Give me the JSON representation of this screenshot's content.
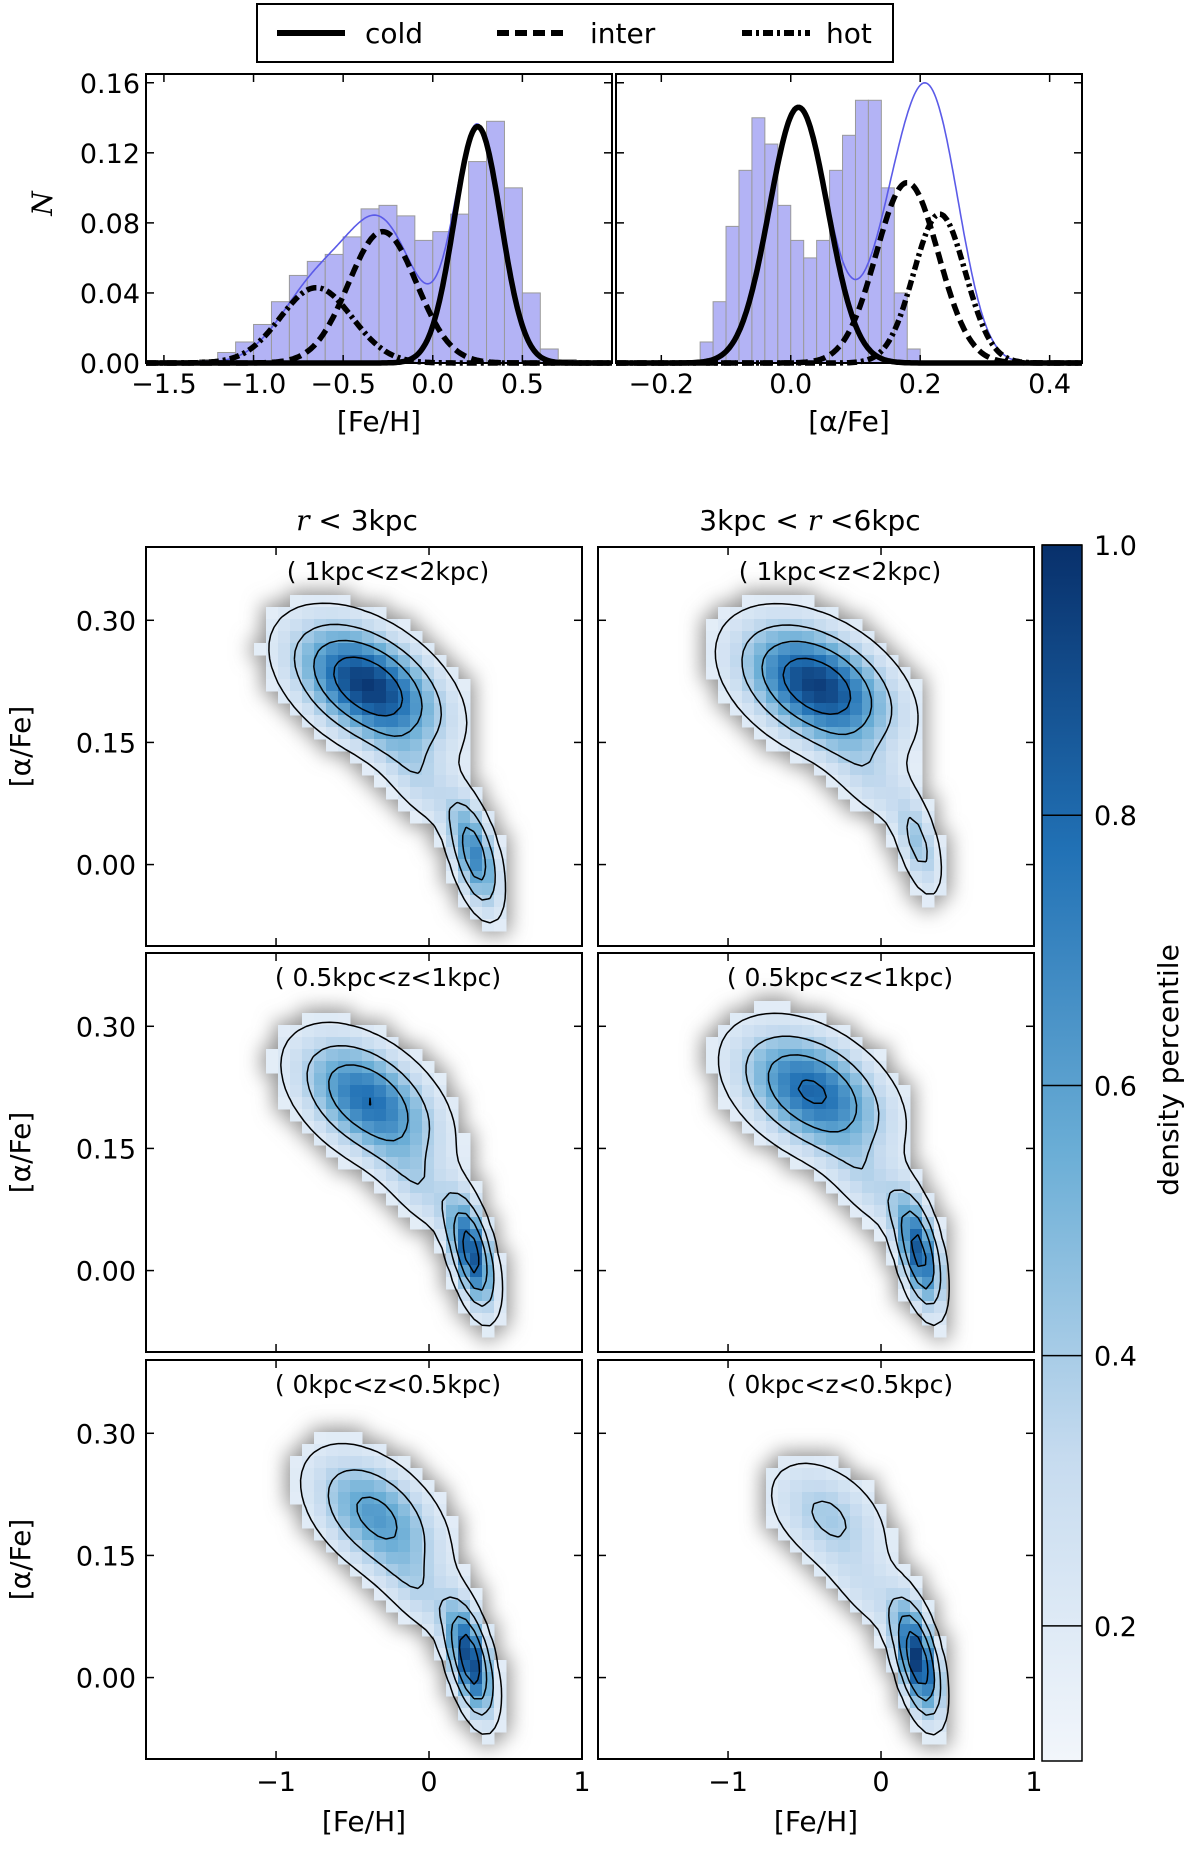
{
  "colors": {
    "hist_fill": "#b3b3f5",
    "hist_edge": "#9a9a9a",
    "total_fit": "#5b5be8",
    "curve": "#000000",
    "cmap_low": "#f2f6fb",
    "cmap_high": "#08306b"
  },
  "legend": {
    "items": [
      {
        "label": "cold",
        "style": "solid"
      },
      {
        "label": "inter",
        "style": "dashed"
      },
      {
        "label": "hot",
        "style": "dotted"
      }
    ]
  },
  "chart_data": [
    {
      "id": "feh-hist",
      "type": "bar",
      "title": "",
      "xlabel": "[Fe/H]",
      "ylabel": "N",
      "xlim": [
        -1.6,
        1.0
      ],
      "ylim": [
        0,
        0.165
      ],
      "xticks": [
        -1.5,
        -1.0,
        -0.5,
        0.0,
        0.5
      ],
      "xtick_labels": [
        "−1.5",
        "−1.0",
        "−0.5",
        "0.0",
        "0.5"
      ],
      "yticks": [
        0,
        0.04,
        0.08,
        0.12,
        0.16
      ],
      "ytick_labels": [
        "0.00",
        "0.04",
        "0.08",
        "0.12",
        "0.16"
      ],
      "bins": {
        "start": -1.3,
        "width": 0.1,
        "counts": [
          0.002,
          0.006,
          0.012,
          0.022,
          0.035,
          0.05,
          0.058,
          0.062,
          0.072,
          0.088,
          0.09,
          0.084,
          0.07,
          0.075,
          0.085,
          0.115,
          0.138,
          0.1,
          0.04,
          0.008,
          0.002
        ]
      },
      "components": [
        {
          "name": "cold",
          "amp": 0.135,
          "mu": 0.25,
          "sigma": 0.13
        },
        {
          "name": "inter",
          "amp": 0.075,
          "mu": -0.28,
          "sigma": 0.19
        },
        {
          "name": "hot",
          "amp": 0.043,
          "mu": -0.65,
          "sigma": 0.2
        }
      ]
    },
    {
      "id": "afe-hist",
      "type": "bar",
      "title": "",
      "xlabel": "[α/Fe]",
      "ylabel": "",
      "xlim": [
        -0.27,
        0.45
      ],
      "ylim": [
        0,
        0.165
      ],
      "xticks": [
        -0.2,
        0.0,
        0.2,
        0.4
      ],
      "xtick_labels": [
        "−0.2",
        "0.0",
        "0.2",
        "0.4"
      ],
      "yticks": [
        0,
        0.04,
        0.08,
        0.12,
        0.16
      ],
      "ytick_labels": [
        "",
        "",
        "",
        "",
        ""
      ],
      "bins": {
        "start": -0.14,
        "width": 0.02,
        "counts": [
          0.012,
          0.035,
          0.078,
          0.11,
          0.14,
          0.125,
          0.09,
          0.07,
          0.06,
          0.07,
          0.11,
          0.13,
          0.15,
          0.15,
          0.1,
          0.04,
          0.008
        ]
      },
      "components": [
        {
          "name": "cold",
          "amp": 0.146,
          "mu": 0.012,
          "sigma": 0.045
        },
        {
          "name": "inter",
          "amp": 0.103,
          "mu": 0.18,
          "sigma": 0.048
        },
        {
          "name": "hot",
          "amp": 0.085,
          "mu": 0.23,
          "sigma": 0.04
        }
      ]
    },
    {
      "id": "density-grid",
      "type": "heatmap",
      "xlabel": "[Fe/H]",
      "ylabel": "[α/Fe]",
      "xlim": [
        -1.85,
        1.0
      ],
      "ylim": [
        -0.1,
        0.39
      ],
      "xticks": [
        -1,
        0,
        1
      ],
      "xtick_labels": [
        "−1",
        "0",
        "1"
      ],
      "yticks": [
        0.0,
        0.15,
        0.3
      ],
      "ytick_labels": [
        "0.00",
        "0.15",
        "0.30"
      ],
      "columns": [
        {
          "prefix": "r",
          "op": " < ",
          "suffix": "3kpc",
          "full": "r < 3kpc"
        },
        {
          "prefix": "3kpc < ",
          "op": "r",
          "suffix": " <6kpc",
          "full": "3kpc < r <6kpc"
        }
      ],
      "rows": [
        "( 1kpc<z<2kpc)",
        "( 0.5kpc<z<1kpc)",
        "( 0kpc<z<0.5kpc)"
      ],
      "colorbar": {
        "label": "density percentile",
        "range": [
          0.1,
          1.0
        ],
        "ticks": [
          0.2,
          0.4,
          0.6,
          0.8,
          1.0
        ],
        "tick_labels": [
          "0.2",
          "0.4",
          "0.6",
          "0.8",
          "1.0"
        ]
      },
      "panels": [
        {
          "row": 0,
          "col": 0,
          "blobs": [
            {
              "x": -0.4,
              "y": 0.22,
              "sx": 0.32,
              "sy": 0.05,
              "rho": -0.45,
              "amp": 0.92
            },
            {
              "x": 0.3,
              "y": 0.01,
              "sx": 0.11,
              "sy": 0.045,
              "rho": -0.5,
              "amp": 0.62
            },
            {
              "x": -0.05,
              "y": 0.1,
              "sx": 0.18,
              "sy": 0.04,
              "rho": -0.6,
              "amp": 0.22
            }
          ]
        },
        {
          "row": 0,
          "col": 1,
          "blobs": [
            {
              "x": -0.42,
              "y": 0.22,
              "sx": 0.33,
              "sy": 0.05,
              "rho": -0.4,
              "amp": 0.9
            },
            {
              "x": 0.25,
              "y": 0.02,
              "sx": 0.1,
              "sy": 0.04,
              "rho": -0.5,
              "amp": 0.33
            },
            {
              "x": -0.05,
              "y": 0.1,
              "sx": 0.2,
              "sy": 0.04,
              "rho": -0.6,
              "amp": 0.2
            }
          ]
        },
        {
          "row": 1,
          "col": 0,
          "blobs": [
            {
              "x": -0.4,
              "y": 0.21,
              "sx": 0.3,
              "sy": 0.05,
              "rho": -0.45,
              "amp": 0.72
            },
            {
              "x": 0.28,
              "y": 0.02,
              "sx": 0.1,
              "sy": 0.045,
              "rho": -0.5,
              "amp": 0.82
            },
            {
              "x": -0.05,
              "y": 0.1,
              "sx": 0.18,
              "sy": 0.04,
              "rho": -0.6,
              "amp": 0.22
            }
          ]
        },
        {
          "row": 1,
          "col": 1,
          "blobs": [
            {
              "x": -0.45,
              "y": 0.22,
              "sx": 0.32,
              "sy": 0.05,
              "rho": -0.4,
              "amp": 0.75
            },
            {
              "x": 0.25,
              "y": 0.02,
              "sx": 0.1,
              "sy": 0.045,
              "rho": -0.5,
              "amp": 0.78
            },
            {
              "x": -0.05,
              "y": 0.1,
              "sx": 0.2,
              "sy": 0.04,
              "rho": -0.6,
              "amp": 0.22
            }
          ]
        },
        {
          "row": 2,
          "col": 0,
          "blobs": [
            {
              "x": -0.35,
              "y": 0.2,
              "sx": 0.28,
              "sy": 0.05,
              "rho": -0.45,
              "amp": 0.55
            },
            {
              "x": 0.27,
              "y": 0.02,
              "sx": 0.1,
              "sy": 0.045,
              "rho": -0.5,
              "amp": 0.88
            },
            {
              "x": -0.05,
              "y": 0.1,
              "sx": 0.18,
              "sy": 0.04,
              "rho": -0.6,
              "amp": 0.2
            }
          ]
        },
        {
          "row": 2,
          "col": 1,
          "blobs": [
            {
              "x": -0.35,
              "y": 0.2,
              "sx": 0.26,
              "sy": 0.045,
              "rho": -0.4,
              "amp": 0.32
            },
            {
              "x": 0.24,
              "y": 0.02,
              "sx": 0.1,
              "sy": 0.045,
              "rho": -0.5,
              "amp": 0.9
            },
            {
              "x": -0.05,
              "y": 0.1,
              "sx": 0.2,
              "sy": 0.04,
              "rho": -0.6,
              "amp": 0.18
            }
          ]
        }
      ]
    }
  ]
}
